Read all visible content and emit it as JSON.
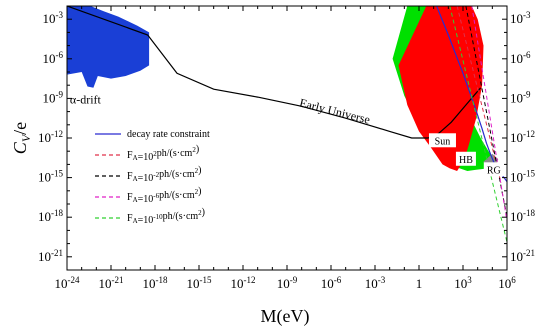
{
  "chart_data": {
    "type": "area",
    "xlabel": "M(eV)",
    "ylabel": "C_V/e",
    "x_log10_range": [
      -24,
      6
    ],
    "y_log10_range": [
      -22,
      -2
    ],
    "x_tick_labels": [
      "10^-24",
      "10^-21",
      "10^-18",
      "10^-15",
      "10^-12",
      "10^-9",
      "10^-6",
      "10^-3",
      "1",
      "10^3",
      "10^6"
    ],
    "x_tick_log10": [
      -24,
      -21,
      -18,
      -15,
      -12,
      -9,
      -6,
      -3,
      0,
      3,
      6
    ],
    "y_tick_labels": [
      "10^-21",
      "10^-18",
      "10^-15",
      "10^-12",
      "10^-9",
      "10^-6",
      "10^-3"
    ],
    "y_tick_log10": [
      -21,
      -18,
      -15,
      -12,
      -9,
      -6,
      -3
    ],
    "colors": {
      "alpha_drift": "#1a3fd6",
      "early_universe_fill": "#ffffff",
      "red_region": "#ff0000",
      "green_region": "#00e000",
      "gray_region": "#8a8a8a",
      "decay_line": "#2a2ad0",
      "early_line": "#000000"
    },
    "annotations": [
      {
        "text": "α-drift",
        "x_log10": -23.8,
        "y_log10": -9.4
      },
      {
        "text": "Early Universe",
        "x_log10": -8.2,
        "y_log10": -9.6,
        "rotate": 14
      },
      {
        "text": "Sun",
        "x_log10": 1.6,
        "y_log10": -12.4
      },
      {
        "text": "HB",
        "x_log10": 3.2,
        "y_log10": -13.8
      },
      {
        "text": "RG",
        "x_log10": 5.1,
        "y_log10": -14.6
      }
    ],
    "legend": [
      {
        "label": "decay rate constraint",
        "color": "#2a2ad0",
        "dash": "solid"
      },
      {
        "label": "F_A=10^2ph/(s·cm^2)",
        "color": "#e0304a",
        "dash": "dashed"
      },
      {
        "label": "F_A=10^-2ph/(s·cm^2)",
        "color": "#000000",
        "dash": "dashed"
      },
      {
        "label": "F_A=10^-6ph/(s·cm^2)",
        "color": "#e020c8",
        "dash": "dashed"
      },
      {
        "label": "F_A=10^-10ph/(s·cm^2)",
        "color": "#30d030",
        "dash": "dashed"
      }
    ],
    "series": [
      {
        "kind": "region",
        "color_key": "alpha_drift",
        "x_log10": [
          -24,
          -22.4,
          -21.5,
          -20.5,
          -19.2,
          -18.4,
          -18.4,
          -19.0,
          -20.0,
          -21.0,
          -21.9,
          -22.2,
          -22.6,
          -23.0,
          -24
        ],
        "y_log10": [
          -2,
          -2,
          -2.4,
          -2.8,
          -3.5,
          -4.0,
          -6.5,
          -6.9,
          -7.3,
          -7.5,
          -7.3,
          -8.2,
          -8.1,
          -7.0,
          -7.2
        ]
      },
      {
        "kind": "region",
        "color_key": "green_region",
        "x_log10": [
          -0.8,
          1.0,
          1.2,
          1.8,
          2.6,
          3.3,
          4.2,
          4.9,
          5.1,
          4.7,
          3.9,
          3.3,
          2.5,
          1.8,
          1.0,
          0.0,
          -1.0,
          -1.8
        ],
        "y_log10": [
          -2,
          -2,
          -3.5,
          -5.5,
          -8.0,
          -10.0,
          -12.0,
          -13.3,
          -14.2,
          -14.3,
          -14.4,
          -14.5,
          -14.2,
          -13.4,
          -12.3,
          -11.0,
          -8.8,
          -6.0
        ]
      },
      {
        "kind": "region",
        "color_key": "red_region",
        "x_log10": [
          0.5,
          3.6,
          4.0,
          4.4,
          4.3,
          3.9,
          3.4,
          3.1,
          2.6,
          2.1,
          1.6,
          0.8,
          0.0,
          -0.8,
          -1.4
        ],
        "y_log10": [
          -2,
          -2,
          -3.0,
          -5.0,
          -8.0,
          -10.5,
          -12.5,
          -13.6,
          -14.5,
          -14.3,
          -14.0,
          -12.7,
          -11.5,
          -9.5,
          -6.5
        ]
      },
      {
        "kind": "region",
        "color_key": "gray_region",
        "x_log10": [
          4.4,
          5.0,
          5.4,
          5.2,
          4.7
        ],
        "y_log10": [
          -13.8,
          -13.2,
          -13.6,
          -14.4,
          -14.6
        ]
      },
      {
        "kind": "line",
        "color_key": "early_line",
        "name": "Early Universe",
        "x_log10": [
          -24,
          -18.5,
          -16.5,
          -14.0,
          -11.0,
          -8.0,
          -5.0,
          -2.0,
          -0.5,
          0.6,
          1.0,
          1.4,
          2.2,
          3.2,
          4.2
        ],
        "y_log10": [
          -2.0,
          -4.2,
          -7.1,
          -8.3,
          -8.9,
          -9.6,
          -10.5,
          -11.5,
          -12.0,
          -12.0,
          -11.9,
          -11.6,
          -10.8,
          -9.5,
          -8.2
        ]
      },
      {
        "kind": "line",
        "color_key": "decay_line",
        "name": "decay rate constraint",
        "x_log10": [
          1.2,
          2.0,
          3.0,
          3.8,
          4.3,
          4.6,
          4.9,
          5.2,
          5.5,
          5.8,
          6.0
        ],
        "y_log10": [
          -2.0,
          -4.2,
          -7.1,
          -9.6,
          -11.3,
          -12.4,
          -13.3,
          -14.1,
          -14.6,
          -15.0,
          -15.3
        ]
      },
      {
        "kind": "dashed",
        "color": "#e0304a",
        "x_log10": [
          2.6,
          5.6
        ],
        "y_log10": [
          -2.0,
          -15.4
        ]
      },
      {
        "kind": "dashed",
        "color": "#000000",
        "x_log10": [
          3.2,
          6.0
        ],
        "y_log10": [
          -2.0,
          -18.0
        ]
      },
      {
        "kind": "dashed",
        "color": "#e020c8",
        "x_log10": [
          3.6,
          6.1
        ],
        "y_log10": [
          -2.0,
          -19.0
        ]
      },
      {
        "kind": "dashed",
        "color": "#30d030",
        "x_log10": [
          2.1,
          6.2
        ],
        "y_log10": [
          -2.0,
          -20.8
        ]
      }
    ]
  }
}
